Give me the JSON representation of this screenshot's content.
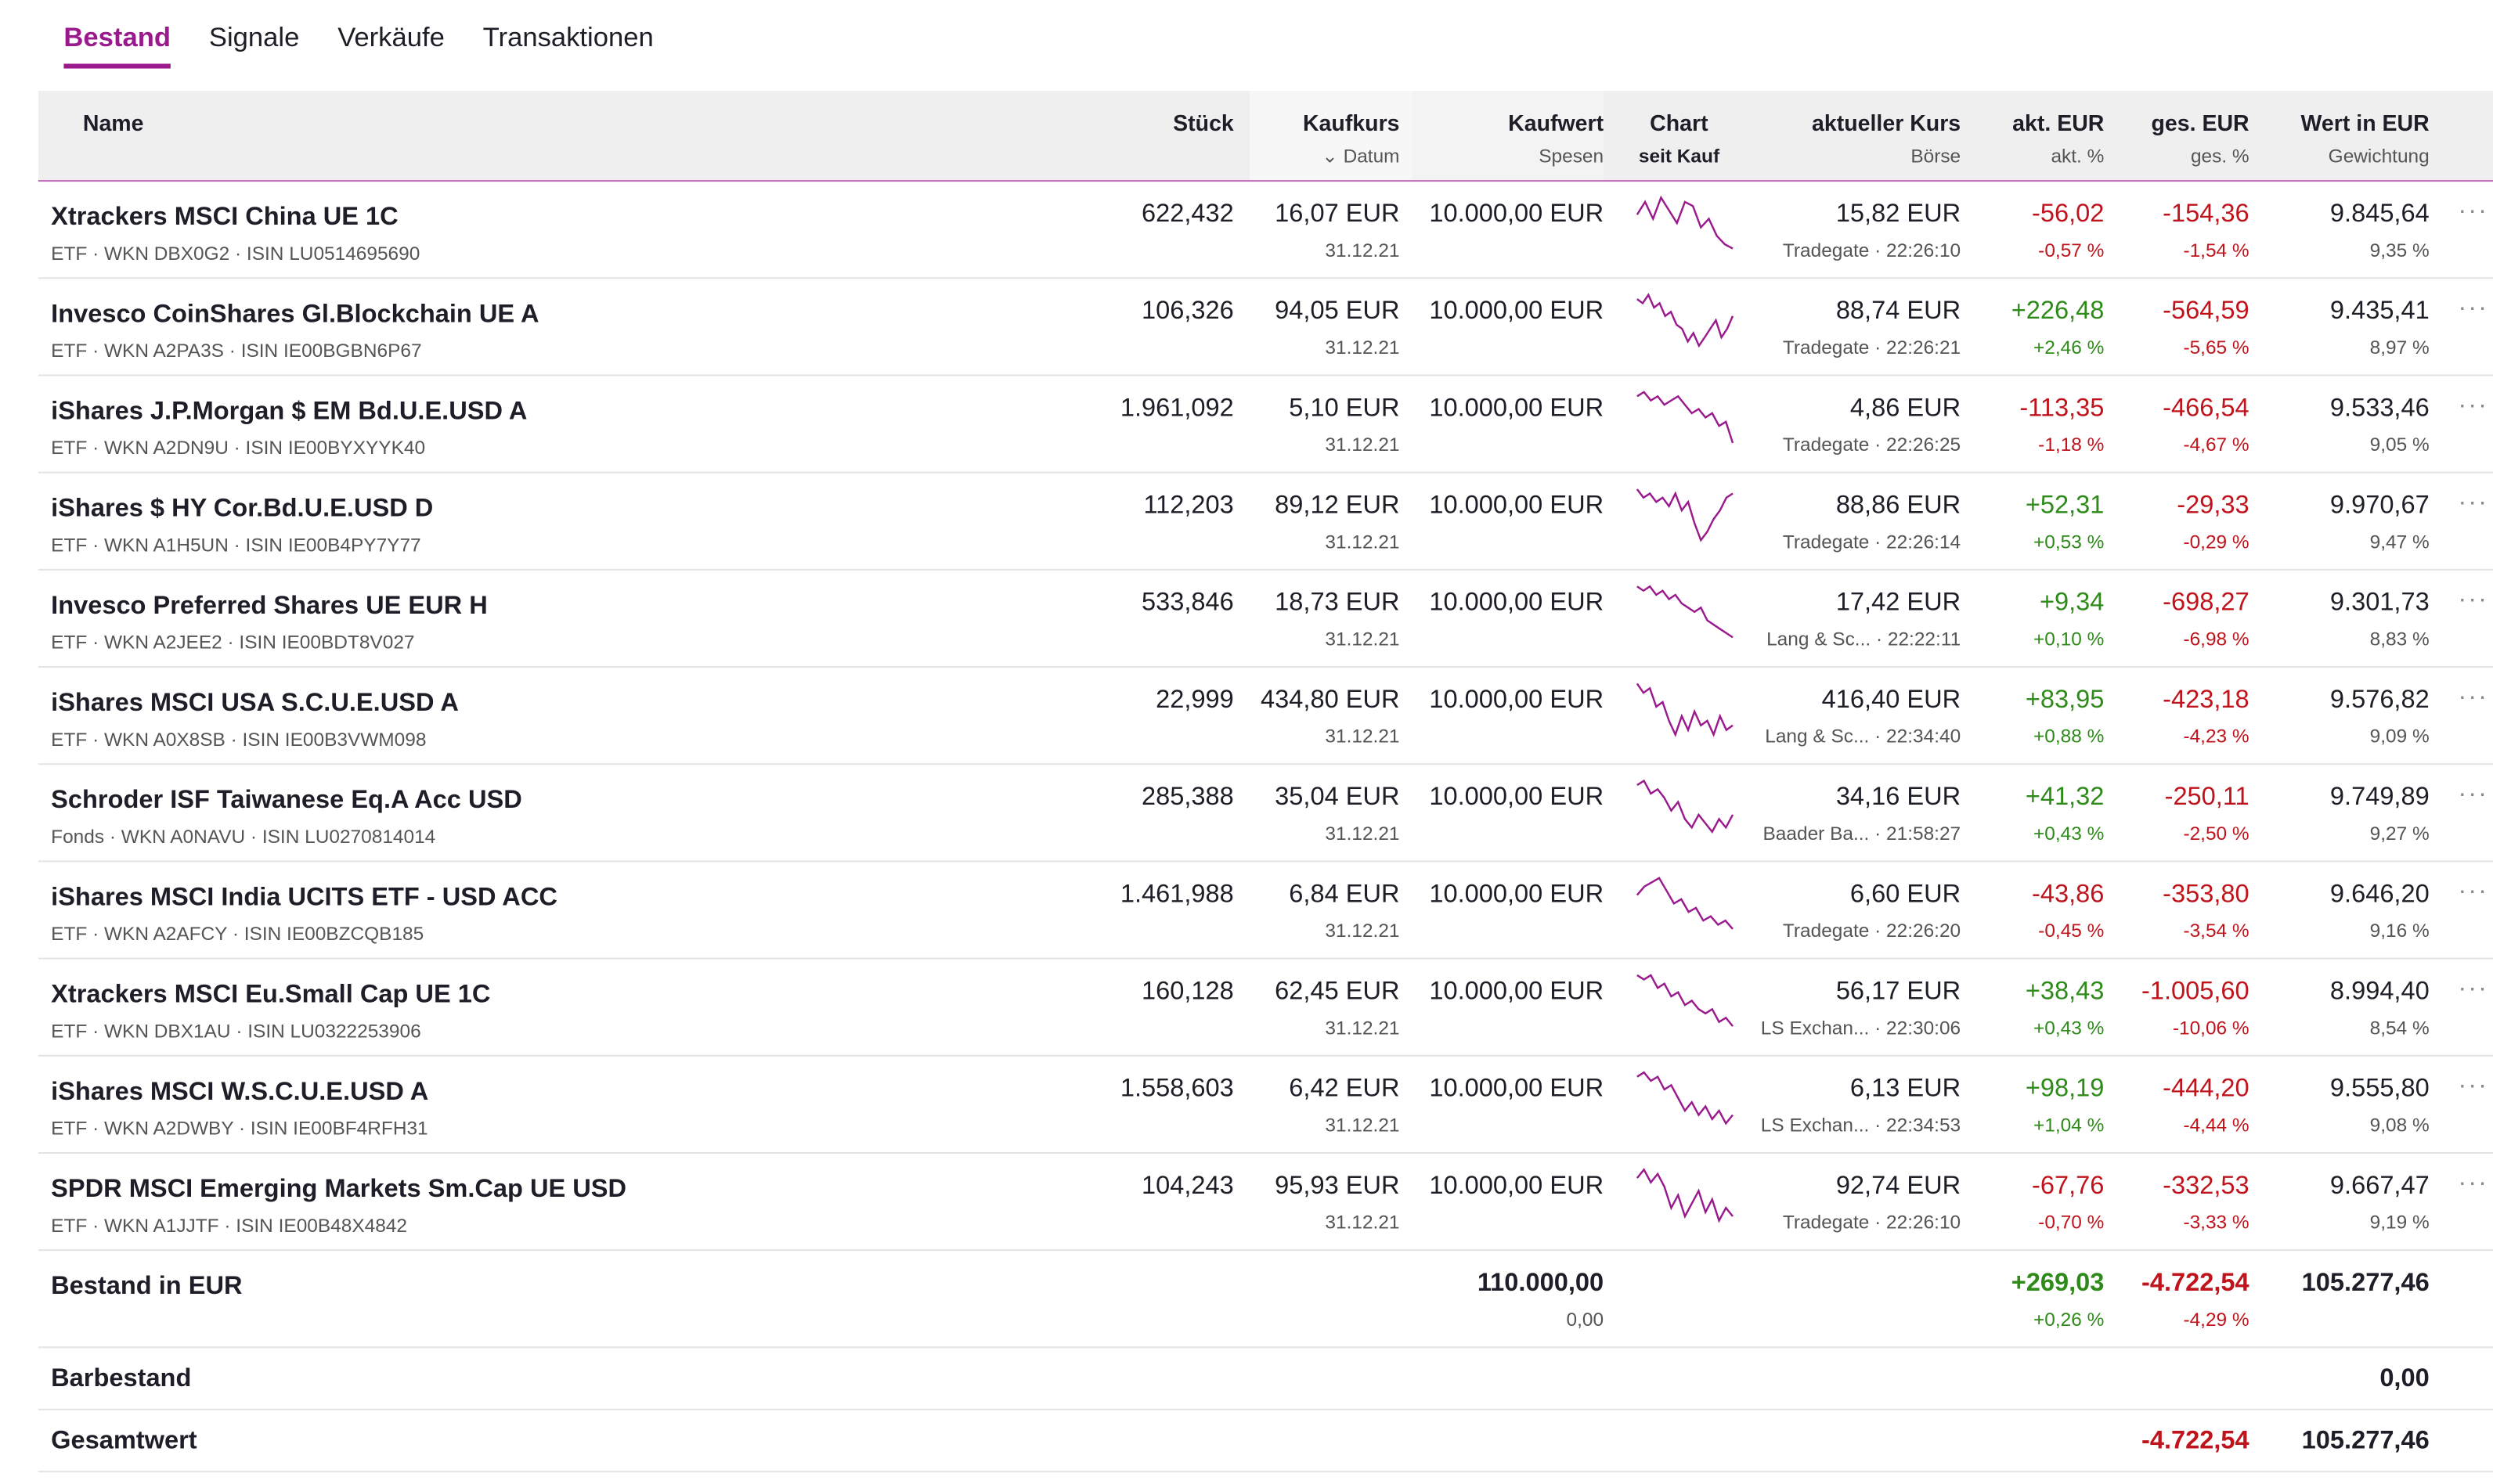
{
  "tabs": [
    "Bestand",
    "Signale",
    "Verkäufe",
    "Transaktionen"
  ],
  "header": {
    "name": "Name",
    "stueck": "Stück",
    "kaufkurs": "Kaufkurs",
    "datum": "Datum",
    "kaufwert": "Kaufwert",
    "spesen": "Spesen",
    "chart": "Chart",
    "seit_kauf": "seit Kauf",
    "aktueller_kurs": "aktueller Kurs",
    "boerse": "Börse",
    "akt_eur": "akt. EUR",
    "akt_pct": "akt. %",
    "ges_eur": "ges. EUR",
    "ges_pct": "ges. %",
    "wert": "Wert in EUR",
    "gewichtung": "Gewichtung"
  },
  "rows": [
    {
      "name": "Xtrackers MSCI China UE 1C",
      "sub": "ETF · WKN DBX0G2 · ISIN LU0514695690",
      "stueck": "622,432",
      "kaufkurs": "16,07 EUR",
      "datum": "31.12.21",
      "kaufwert": "10.000,00 EUR",
      "kurs": "15,82 EUR",
      "boerse": "Tradegate · 22:26:10",
      "akt_eur": "-56,02",
      "akt_pct": "-0,57 %",
      "ges_eur": "-154,36",
      "ges_pct": "-1,54 %",
      "wert": "9.845,64",
      "gew": "9,35 %",
      "spark": [
        5,
        2,
        6,
        1,
        4,
        7,
        2,
        3,
        8,
        6,
        10,
        12,
        13
      ]
    },
    {
      "name": "Invesco CoinShares Gl.Blockchain UE A",
      "sub": "ETF · WKN A2PA3S · ISIN IE00BGBN6P67",
      "stueck": "106,326",
      "kaufkurs": "94,05 EUR",
      "datum": "31.12.21",
      "kaufwert": "10.000,00 EUR",
      "kurs": "88,74 EUR",
      "boerse": "Tradegate · 22:26:21",
      "akt_eur": "+226,48",
      "akt_pct": "+2,46 %",
      "ges_eur": "-564,59",
      "ges_pct": "-5,65 %",
      "wert": "9.435,41",
      "gew": "8,97 %",
      "spark": [
        2,
        3,
        1,
        4,
        3,
        6,
        5,
        8,
        9,
        12,
        10,
        13,
        11,
        9,
        7,
        11,
        9,
        6
      ]
    },
    {
      "name": "iShares J.P.Morgan $ EM Bd.U.E.USD A",
      "sub": "ETF · WKN A2DN9U · ISIN IE00BYXYYK40",
      "stueck": "1.961,092",
      "kaufkurs": "5,10 EUR",
      "datum": "31.12.21",
      "kaufwert": "10.000,00 EUR",
      "kurs": "4,86 EUR",
      "boerse": "Tradegate · 22:26:25",
      "akt_eur": "-113,35",
      "akt_pct": "-1,18 %",
      "ges_eur": "-466,54",
      "ges_pct": "-4,67 %",
      "wert": "9.533,46",
      "gew": "9,05 %",
      "spark": [
        2,
        1,
        3,
        2,
        4,
        3,
        2,
        4,
        6,
        5,
        7,
        6,
        9,
        8,
        13
      ]
    },
    {
      "name": "iShares $ HY Cor.Bd.U.E.USD D",
      "sub": "ETF · WKN A1H5UN · ISIN IE00B4PY7Y77",
      "stueck": "112,203",
      "kaufkurs": "89,12 EUR",
      "datum": "31.12.21",
      "kaufwert": "10.000,00 EUR",
      "kurs": "88,86 EUR",
      "boerse": "Tradegate · 22:26:14",
      "akt_eur": "+52,31",
      "akt_pct": "+0,53 %",
      "ges_eur": "-29,33",
      "ges_pct": "-0,29 %",
      "wert": "9.970,67",
      "gew": "9,47 %",
      "spark": [
        1,
        3,
        2,
        4,
        3,
        5,
        2,
        6,
        4,
        9,
        13,
        11,
        8,
        6,
        3,
        2
      ]
    },
    {
      "name": "Invesco Preferred Shares UE EUR H",
      "sub": "ETF · WKN A2JEE2 · ISIN IE00BDT8V027",
      "stueck": "533,846",
      "kaufkurs": "18,73 EUR",
      "datum": "31.12.21",
      "kaufwert": "10.000,00 EUR",
      "kurs": "17,42 EUR",
      "boerse": "Lang & Sc... · 22:22:11",
      "akt_eur": "+9,34",
      "akt_pct": "+0,10 %",
      "ges_eur": "-698,27",
      "ges_pct": "-6,98 %",
      "wert": "9.301,73",
      "gew": "8,83 %",
      "spark": [
        1,
        2,
        1,
        3,
        2,
        4,
        3,
        5,
        6,
        7,
        6,
        9,
        10,
        11,
        12,
        13
      ]
    },
    {
      "name": "iShares MSCI USA S.C.U.E.USD A",
      "sub": "ETF · WKN A0X8SB · ISIN IE00B3VWM098",
      "stueck": "22,999",
      "kaufkurs": "434,80 EUR",
      "datum": "31.12.21",
      "kaufwert": "10.000,00 EUR",
      "kurs": "416,40 EUR",
      "boerse": "Lang & Sc... · 22:34:40",
      "akt_eur": "+83,95",
      "akt_pct": "+0,88 %",
      "ges_eur": "-423,18",
      "ges_pct": "-4,23 %",
      "wert": "9.576,82",
      "gew": "9,09 %",
      "spark": [
        1,
        3,
        2,
        6,
        5,
        9,
        12,
        8,
        11,
        7,
        10,
        9,
        12,
        8,
        11,
        10
      ]
    },
    {
      "name": "Schroder ISF Taiwanese Eq.A Acc USD",
      "sub": "Fonds · WKN A0NAVU · ISIN LU0270814014",
      "stueck": "285,388",
      "kaufkurs": "35,04 EUR",
      "datum": "31.12.21",
      "kaufwert": "10.000,00 EUR",
      "kurs": "34,16 EUR",
      "boerse": "Baader Ba... · 21:58:27",
      "akt_eur": "+41,32",
      "akt_pct": "+0,43 %",
      "ges_eur": "-250,11",
      "ges_pct": "-2,50 %",
      "wert": "9.749,89",
      "gew": "9,27 %",
      "spark": [
        2,
        1,
        4,
        3,
        5,
        8,
        6,
        10,
        12,
        9,
        11,
        13,
        10,
        12,
        9
      ]
    },
    {
      "name": "iShares MSCI India UCITS ETF - USD ACC",
      "sub": "ETF · WKN A2AFCY · ISIN IE00BZCQB185",
      "stueck": "1.461,988",
      "kaufkurs": "6,84 EUR",
      "datum": "31.12.21",
      "kaufwert": "10.000,00 EUR",
      "kurs": "6,60 EUR",
      "boerse": "Tradegate · 22:26:20",
      "akt_eur": "-43,86",
      "akt_pct": "-0,45 %",
      "ges_eur": "-353,80",
      "ges_pct": "-3,54 %",
      "wert": "9.646,20",
      "gew": "9,16 %",
      "spark": [
        5,
        3,
        2,
        1,
        4,
        7,
        6,
        9,
        8,
        11,
        10,
        12,
        11,
        13
      ]
    },
    {
      "name": "Xtrackers MSCI Eu.Small Cap UE 1C",
      "sub": "ETF · WKN DBX1AU · ISIN LU0322253906",
      "stueck": "160,128",
      "kaufkurs": "62,45 EUR",
      "datum": "31.12.21",
      "kaufwert": "10.000,00 EUR",
      "kurs": "56,17 EUR",
      "boerse": "LS Exchan... · 22:30:06",
      "akt_eur": "+38,43",
      "akt_pct": "+0,43 %",
      "ges_eur": "-1.005,60",
      "ges_pct": "-10,06 %",
      "wert": "8.994,40",
      "gew": "8,54 %",
      "spark": [
        1,
        2,
        1,
        4,
        3,
        6,
        5,
        8,
        7,
        9,
        10,
        9,
        12,
        11,
        13
      ]
    },
    {
      "name": "iShares MSCI W.S.C.U.E.USD A",
      "sub": "ETF · WKN A2DWBY · ISIN IE00BF4RFH31",
      "stueck": "1.558,603",
      "kaufkurs": "6,42 EUR",
      "datum": "31.12.21",
      "kaufwert": "10.000,00 EUR",
      "kurs": "6,13 EUR",
      "boerse": "LS Exchan... · 22:34:53",
      "akt_eur": "+98,19",
      "akt_pct": "+1,04 %",
      "ges_eur": "-444,20",
      "ges_pct": "-4,44 %",
      "wert": "9.555,80",
      "gew": "9,08 %",
      "spark": [
        2,
        1,
        3,
        2,
        5,
        4,
        7,
        10,
        8,
        11,
        9,
        12,
        10,
        13,
        11
      ]
    },
    {
      "name": "SPDR MSCI Emerging Markets Sm.Cap UE USD",
      "sub": "ETF · WKN A1JJTF · ISIN IE00B48X4842",
      "stueck": "104,243",
      "kaufkurs": "95,93 EUR",
      "datum": "31.12.21",
      "kaufwert": "10.000,00 EUR",
      "kurs": "92,74 EUR",
      "boerse": "Tradegate · 22:26:10",
      "akt_eur": "-67,76",
      "akt_pct": "-0,70 %",
      "ges_eur": "-332,53",
      "ges_pct": "-3,33 %",
      "wert": "9.667,47",
      "gew": "9,19 %",
      "spark": [
        3,
        1,
        4,
        2,
        5,
        10,
        7,
        12,
        9,
        6,
        11,
        8,
        13,
        10,
        12
      ]
    }
  ],
  "summary": {
    "label": "Bestand in EUR",
    "kaufwert": "110.000,00",
    "spesen": "0,00",
    "akt_eur": "+269,03",
    "akt_pct": "+0,26 %",
    "ges_eur": "-4.722,54",
    "ges_pct": "-4,29 %",
    "wert": "105.277,46"
  },
  "cash": {
    "label": "Barbestand",
    "wert": "0,00"
  },
  "total": {
    "label": "Gesamtwert",
    "ges_eur": "-4.722,54",
    "wert": "105.277,46"
  },
  "more_glyph": "···",
  "colors": {
    "accent": "#9a1a8e",
    "positive": "#2e8b1a",
    "negative": "#c0141d"
  }
}
